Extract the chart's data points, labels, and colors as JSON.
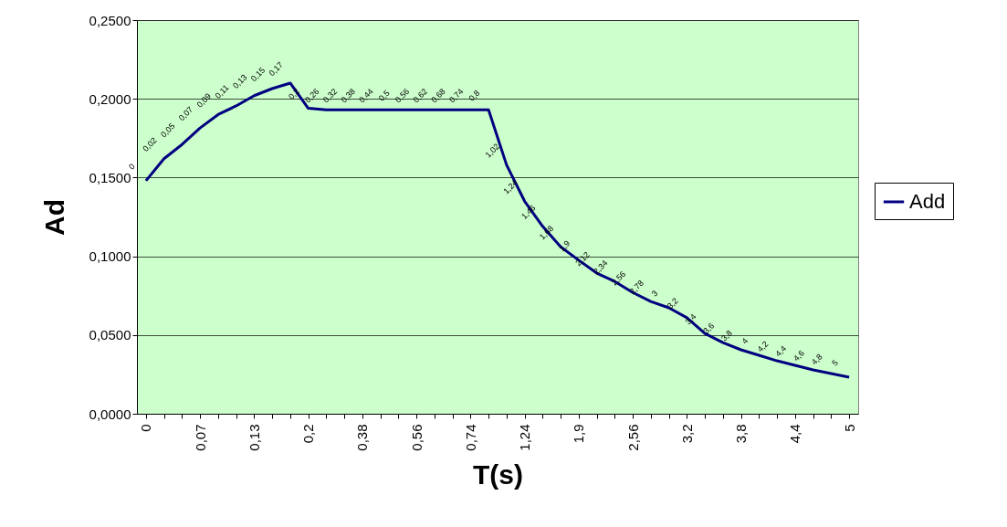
{
  "chart_data": {
    "type": "line",
    "xlabel": "T(s)",
    "ylabel": "Ad",
    "categories": [
      "0",
      null,
      null,
      "0,07",
      null,
      null,
      "0,13",
      null,
      null,
      "0,2",
      null,
      null,
      "0,38",
      null,
      null,
      "0,56",
      null,
      null,
      "0,74",
      null,
      null,
      "1,24",
      null,
      null,
      "1,9",
      null,
      null,
      "2,56",
      null,
      null,
      "3,2",
      null,
      null,
      "3,8",
      null,
      null,
      "4,4",
      null,
      null,
      "5"
    ],
    "series": [
      {
        "name": "Add",
        "color": "#000080",
        "values": [
          0.148,
          0.162,
          0.171,
          0.1815,
          0.19,
          0.1955,
          0.202,
          0.2065,
          0.21,
          0.194,
          0.193,
          0.193,
          0.193,
          0.193,
          0.193,
          0.193,
          0.193,
          0.193,
          0.193,
          0.193,
          0.158,
          0.135,
          0.119,
          0.106,
          0.0975,
          0.0893,
          0.084,
          0.077,
          0.0713,
          0.0673,
          0.061,
          0.051,
          0.0452,
          0.0406,
          0.0371,
          0.0336,
          0.0307,
          0.0278,
          0.0255,
          0.0232
        ]
      }
    ],
    "annotations": [
      "0",
      "0,02",
      "0,05",
      "0,07",
      "0,09",
      "0,11",
      "0,13",
      "0,15",
      "0,17",
      "0,2",
      "0,26",
      "0,32",
      "0,38",
      "0,44",
      "0,5",
      "0,56",
      "0,62",
      "0,68",
      "0,74",
      "0,8",
      "1,02",
      "1,24",
      "1,46",
      "1,68",
      "1,9",
      "2,12",
      "2,34",
      "2,56",
      "2,78",
      "3",
      "3,2",
      "3,4",
      "3,6",
      "3,8",
      "4",
      "4,2",
      "4,4",
      "4,6",
      "4,8",
      "5"
    ],
    "ylim": [
      0,
      0.25
    ],
    "yticks": [
      {
        "value": 0,
        "label": "0,0000"
      },
      {
        "value": 0.05,
        "label": "0,0500"
      },
      {
        "value": 0.1,
        "label": "0,1000"
      },
      {
        "value": 0.15,
        "label": "0,1500"
      },
      {
        "value": 0.2,
        "label": "0,2000"
      },
      {
        "value": 0.25,
        "label": "0,2500"
      }
    ],
    "grid": "y",
    "legend": "right",
    "marker": "none",
    "line_style": "solid"
  }
}
